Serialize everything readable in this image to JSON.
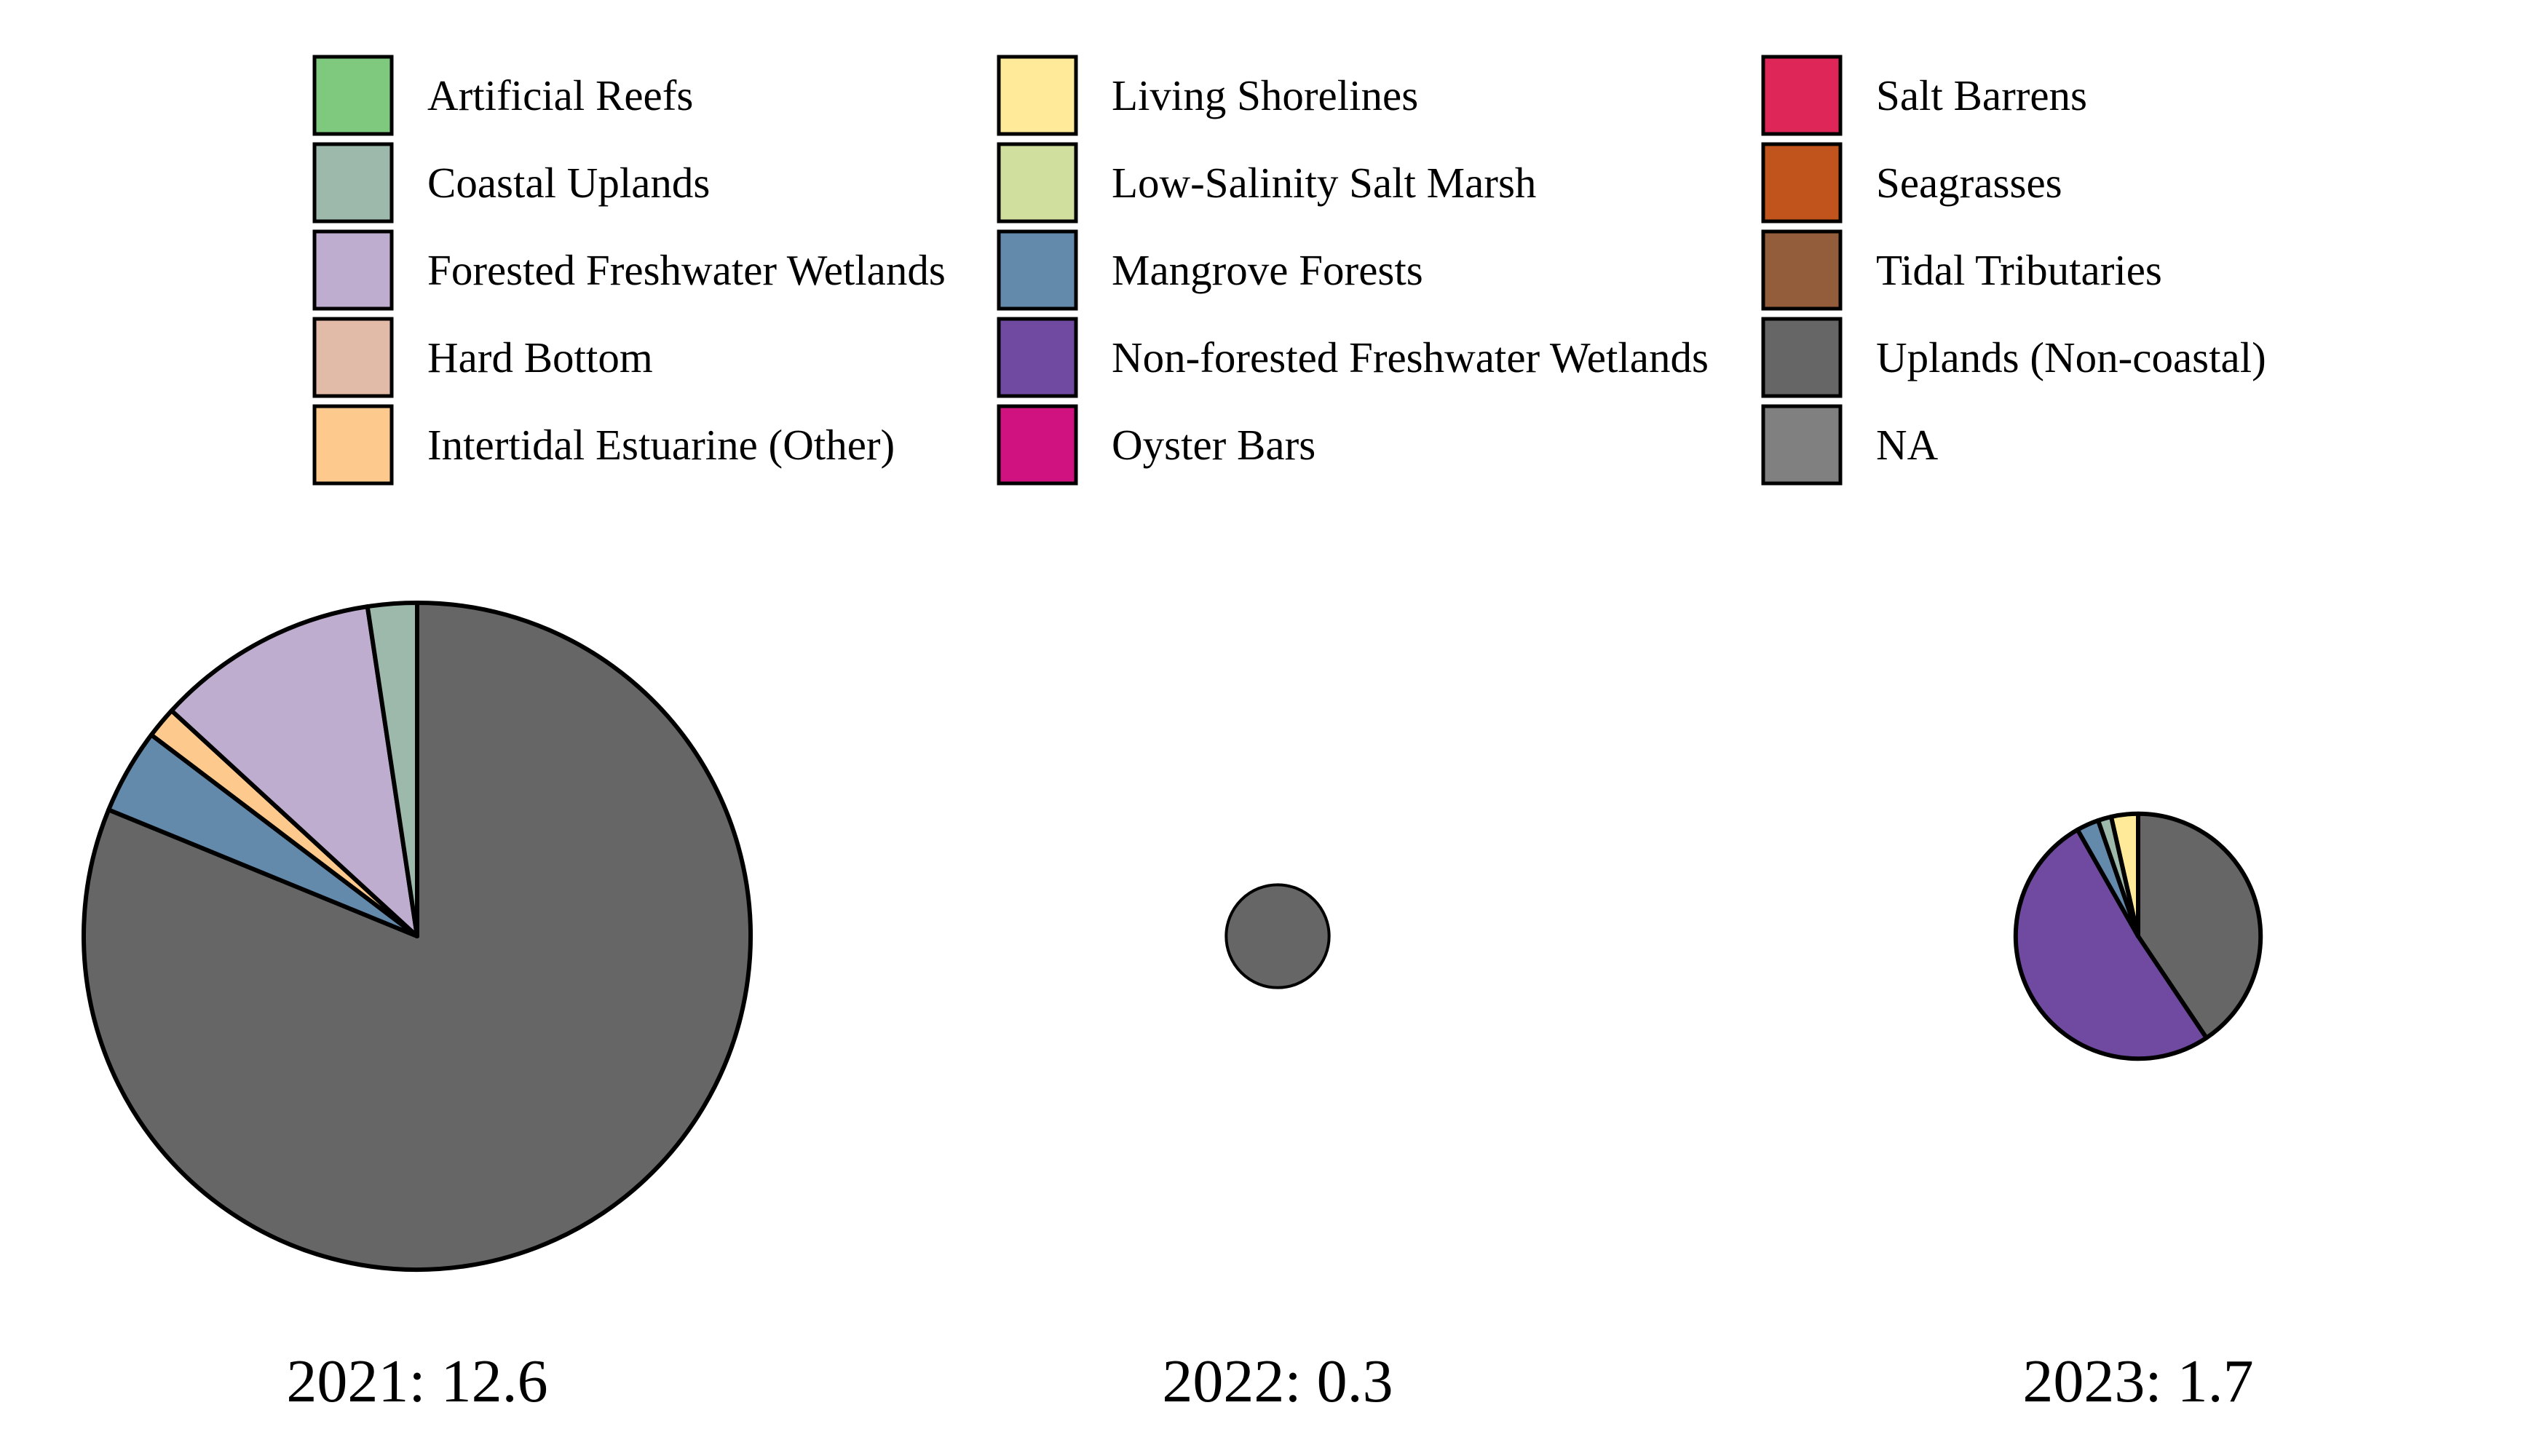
{
  "chart_data": {
    "type": "pie",
    "legend_position": "top",
    "legend": [
      {
        "label": "Artificial Reefs",
        "color": "#7FC97F"
      },
      {
        "label": "Coastal Uplands",
        "color": "#9DB9AB"
      },
      {
        "label": "Forested Freshwater Wetlands",
        "color": "#BFADCF"
      },
      {
        "label": "Hard Bottom",
        "color": "#E2BAA8"
      },
      {
        "label": "Intertidal Estuarine (Other)",
        "color": "#FDC98D"
      },
      {
        "label": "Living Shorelines",
        "color": "#FEEA98"
      },
      {
        "label": "Low-Salinity Salt Marsh",
        "color": "#D1DF9E"
      },
      {
        "label": "Mangrove Forests",
        "color": "#6389AB"
      },
      {
        "label": "Non-forested Freshwater Wetlands",
        "color": "#704AA0"
      },
      {
        "label": "Oyster Bars",
        "color": "#D01281"
      },
      {
        "label": "Salt Barrens",
        "color": "#DF2659"
      },
      {
        "label": "Seagrasses",
        "color": "#C1531D"
      },
      {
        "label": "Tidal Tributaries",
        "color": "#935C3A"
      },
      {
        "label": "Uplands (Non-coastal)",
        "color": "#666666"
      },
      {
        "label": "NA",
        "color": "#808080"
      }
    ],
    "pies": [
      {
        "label": "2021: 12.6",
        "total": 12.6,
        "slices": [
          {
            "category": "Uplands (Non-coastal)",
            "value": 10.23
          },
          {
            "category": "Mangrove Forests",
            "value": 0.52
          },
          {
            "category": "Intertidal Estuarine (Other)",
            "value": 0.19
          },
          {
            "category": "Forested Freshwater Wetlands",
            "value": 1.36
          },
          {
            "category": "Coastal Uplands",
            "value": 0.3
          }
        ]
      },
      {
        "label": "2022: 0.3",
        "total": 0.3,
        "slices": [
          {
            "category": "Uplands (Non-coastal)",
            "value": 0.3
          }
        ]
      },
      {
        "label": "2023: 1.7",
        "total": 1.7,
        "slices": [
          {
            "category": "Uplands (Non-coastal)",
            "value": 0.69
          },
          {
            "category": "Non-forested Freshwater Wetlands",
            "value": 0.87
          },
          {
            "category": "Mangrove Forests",
            "value": 0.05
          },
          {
            "category": "Coastal Uplands",
            "value": 0.03
          },
          {
            "category": "Living Shorelines",
            "value": 0.06
          }
        ]
      }
    ]
  }
}
